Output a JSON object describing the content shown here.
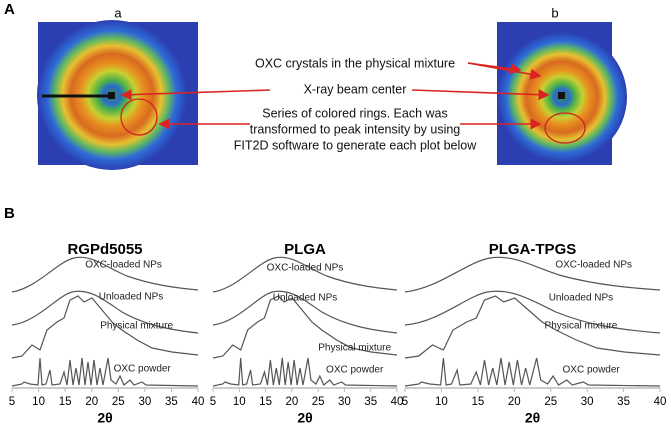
{
  "panel_a": {
    "label": "A",
    "images": [
      "a",
      "b"
    ],
    "annotations": [
      "OXC crystals in the physical mixture",
      "X-ray beam center",
      [
        "Series of colored rings. Each was",
        "transformed to peak intensity by using",
        "FIT2D software to generate each plot below"
      ]
    ]
  },
  "panel_b": {
    "label": "B",
    "xlim": [
      5,
      40
    ],
    "xticks": [
      5,
      10,
      15,
      20,
      25,
      30,
      35,
      40
    ],
    "xlabel": "2θ",
    "plots": [
      {
        "title": "RGPd5055",
        "curves": [
          "OXC-loaded NPs",
          "Unloaded NPs",
          "Physical mixture",
          "OXC powder"
        ]
      },
      {
        "title": "PLGA",
        "curves": [
          "OXC-loaded NPs",
          "Unloaded NPs",
          "Physical mixture",
          "OXC powder"
        ]
      },
      {
        "title": "PLGA-TPGS",
        "curves": [
          "OXC-loaded NPs",
          "Unloaded NPs",
          "Physical mixture",
          "OXC powder"
        ]
      }
    ]
  }
}
